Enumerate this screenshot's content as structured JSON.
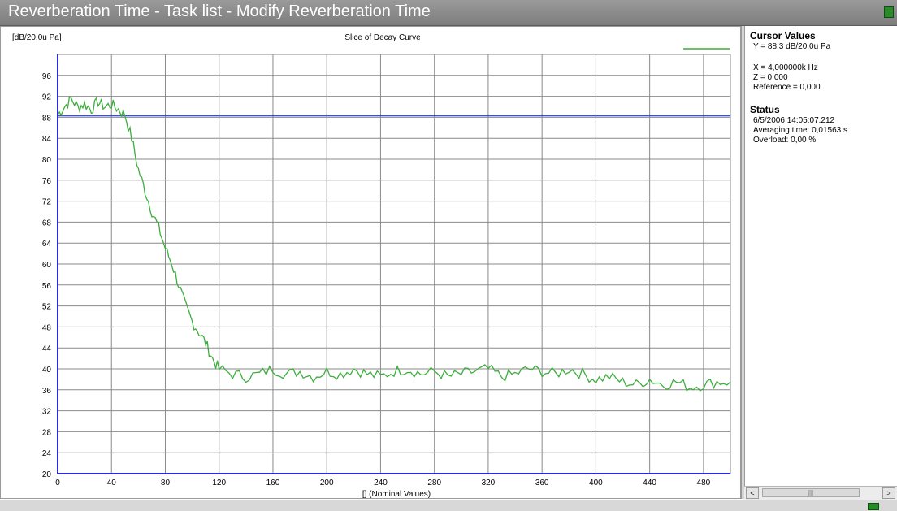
{
  "window": {
    "title": "Reverberation Time - Task list - Modify Reverberation Time",
    "app_icon": "task-icon"
  },
  "cursor_values": {
    "header": "Cursor Values",
    "y_line": "Y = 88,3 dB/20,0u Pa",
    "x_line": "X = 4,000000k Hz",
    "z_line": "Z = 0,000",
    "reference_line": "Reference = 0,000"
  },
  "status": {
    "header": "Status",
    "date_line": "6/5/2006  14:05:07.212",
    "averaging_line": "Averaging time:  0,01563 s",
    "overload_line": "Overload:  0,00 %"
  },
  "scrollbar": {
    "left_glyph": "<",
    "thumb_glyph": "|||",
    "right_glyph": ">"
  },
  "chart_data": {
    "type": "line",
    "title": "Slice of Decay Curve",
    "ylabel": "[dB/20,0u Pa]",
    "xlabel": "[] (Nominal Values)",
    "xlim": [
      0,
      500
    ],
    "ylim": [
      20,
      100
    ],
    "x_ticks": [
      0,
      40,
      80,
      120,
      160,
      200,
      240,
      280,
      320,
      360,
      400,
      440,
      480
    ],
    "y_ticks": [
      20,
      24,
      28,
      32,
      36,
      40,
      44,
      48,
      52,
      56,
      60,
      64,
      68,
      72,
      76,
      80,
      84,
      88,
      92,
      96
    ],
    "grid": true,
    "legend": "top-right",
    "cursor_y": 88.3,
    "colors": {
      "series": "#3cae3c",
      "cursor": "#3b4fd6",
      "axis": "#2a2ad6"
    },
    "series": [
      {
        "x": [
          0,
          5,
          10,
          15,
          20,
          25,
          30,
          35,
          40,
          45,
          50,
          55,
          60,
          65,
          70,
          75,
          80,
          85,
          90,
          95,
          100,
          105,
          110,
          115,
          120,
          130,
          140,
          150,
          160,
          170,
          180,
          190,
          200,
          210,
          220,
          230,
          240,
          250,
          260,
          270,
          280,
          290,
          300,
          310,
          320,
          330,
          340,
          350,
          360,
          370,
          380,
          390,
          400,
          410,
          420,
          430,
          440,
          450,
          460,
          470,
          480,
          490,
          500
        ],
        "values": [
          88.5,
          90,
          91.5,
          90,
          90.5,
          89.5,
          91,
          90,
          90.5,
          89.5,
          88.5,
          84,
          78,
          74,
          70,
          67,
          63,
          60,
          56,
          52,
          49,
          47,
          45,
          42,
          40,
          39,
          38.5,
          39,
          40,
          39,
          39.5,
          38.5,
          39.5,
          39,
          40,
          39,
          38.5,
          39.5,
          40,
          39,
          39.5,
          38.5,
          39,
          39.5,
          40,
          38.5,
          39,
          40,
          39.5,
          39,
          40,
          39,
          38,
          38.5,
          37.5,
          37,
          38,
          37,
          37.5,
          36.5,
          37,
          37.5,
          37.5
        ]
      }
    ]
  }
}
